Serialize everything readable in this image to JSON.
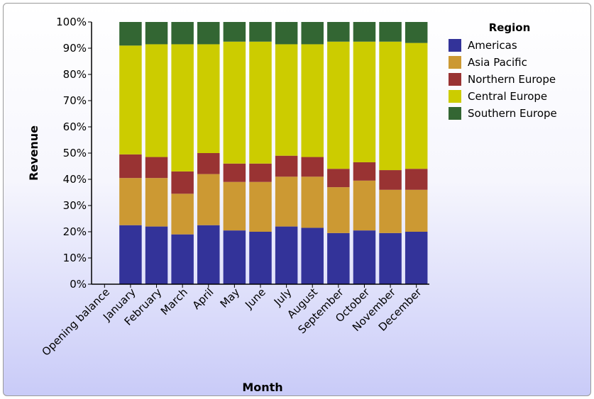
{
  "chart_data": {
    "type": "bar",
    "stacked": true,
    "normalized_percent": true,
    "categories": [
      "Opening balance",
      "January",
      "February",
      "March",
      "April",
      "May",
      "June",
      "July",
      "August",
      "September",
      "October",
      "November",
      "December"
    ],
    "series": [
      {
        "name": "Americas",
        "color": "#333399",
        "values": [
          0,
          22.5,
          22,
          19,
          22.5,
          20.5,
          20,
          22,
          21.5,
          19.5,
          20.5,
          19.5,
          20
        ]
      },
      {
        "name": "Asia Pacific",
        "color": "#cc9933",
        "values": [
          0,
          18,
          18.5,
          15.5,
          19.5,
          18.5,
          19,
          19,
          19.5,
          17.5,
          19,
          16.5,
          16
        ]
      },
      {
        "name": "Northern Europe",
        "color": "#993333",
        "values": [
          0,
          9,
          8,
          8.5,
          8,
          7,
          7,
          8,
          7.5,
          7,
          7,
          7.5,
          8
        ]
      },
      {
        "name": "Central Europe",
        "color": "#cccc00",
        "values": [
          0,
          41.5,
          43,
          48.5,
          41.5,
          46.5,
          46.5,
          42.5,
          43,
          48.5,
          46,
          49,
          48
        ]
      },
      {
        "name": "Southern Europe",
        "color": "#336633",
        "values": [
          0,
          9,
          8.5,
          8.5,
          8.5,
          7.5,
          7.5,
          8.5,
          8.5,
          7.5,
          7.5,
          7.5,
          8
        ]
      }
    ],
    "yticks": [
      "0%",
      "10%",
      "20%",
      "30%",
      "40%",
      "50%",
      "60%",
      "70%",
      "80%",
      "90%",
      "100%"
    ],
    "ylim": [
      0,
      100
    ],
    "xlabel": "Month",
    "ylabel": "Revenue",
    "legend": {
      "title": "Region",
      "position": "right"
    },
    "grid": false
  }
}
